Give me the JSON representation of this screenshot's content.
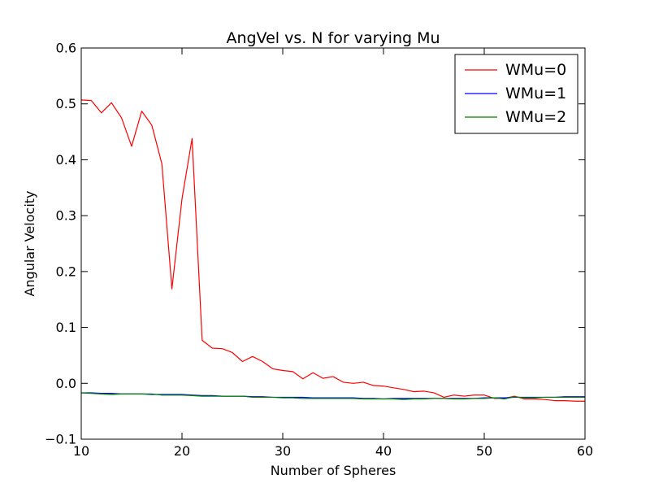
{
  "chart_data": {
    "type": "line",
    "title": "AngVel vs. N for varying Mu",
    "xlabel": "Number of Spheres",
    "ylabel": "Angular Velocity",
    "xlim": [
      10,
      60
    ],
    "ylim": [
      -0.1,
      0.6
    ],
    "xticks": [
      "10",
      "20",
      "30",
      "40",
      "50",
      "60"
    ],
    "yticks": [
      "−0.1",
      "0.0",
      "0.1",
      "0.2",
      "0.3",
      "0.4",
      "0.5",
      "0.6"
    ],
    "grid": false,
    "legend_position": "top-right",
    "x": [
      10,
      11,
      12,
      13,
      14,
      15,
      16,
      17,
      18,
      19,
      20,
      21,
      22,
      23,
      24,
      25,
      26,
      27,
      28,
      29,
      30,
      31,
      32,
      33,
      34,
      35,
      36,
      37,
      38,
      39,
      40,
      41,
      42,
      43,
      44,
      45,
      46,
      47,
      48,
      49,
      50,
      51,
      52,
      53,
      54,
      55,
      56,
      57,
      58,
      59,
      60
    ],
    "series": [
      {
        "name": "WMu=0",
        "color": "#ff0000",
        "values": [
          0.507,
          0.506,
          0.484,
          0.502,
          0.475,
          0.424,
          0.487,
          0.462,
          0.393,
          0.169,
          0.33,
          0.438,
          0.077,
          0.063,
          0.062,
          0.055,
          0.039,
          0.048,
          0.039,
          0.026,
          0.023,
          0.021,
          0.008,
          0.019,
          0.009,
          0.012,
          0.002,
          0.0,
          0.002,
          -0.004,
          -0.005,
          -0.008,
          -0.011,
          -0.015,
          -0.014,
          -0.017,
          -0.025,
          -0.021,
          -0.023,
          -0.021,
          -0.021,
          -0.027,
          -0.027,
          -0.023,
          -0.028,
          -0.028,
          -0.029,
          -0.031,
          -0.031,
          -0.032,
          -0.032
        ]
      },
      {
        "name": "WMu=1",
        "color": "#0000ff",
        "values": [
          -0.017,
          -0.017,
          -0.018,
          -0.018,
          -0.019,
          -0.019,
          -0.019,
          -0.02,
          -0.02,
          -0.02,
          -0.02,
          -0.021,
          -0.022,
          -0.022,
          -0.023,
          -0.023,
          -0.023,
          -0.024,
          -0.024,
          -0.025,
          -0.025,
          -0.025,
          -0.025,
          -0.026,
          -0.026,
          -0.026,
          -0.026,
          -0.026,
          -0.027,
          -0.027,
          -0.028,
          -0.027,
          -0.027,
          -0.027,
          -0.027,
          -0.027,
          -0.027,
          -0.027,
          -0.027,
          -0.027,
          -0.026,
          -0.026,
          -0.026,
          -0.025,
          -0.025,
          -0.025,
          -0.025,
          -0.025,
          -0.024,
          -0.024,
          -0.024
        ]
      },
      {
        "name": "WMu=2",
        "color": "#008000",
        "values": [
          -0.017,
          -0.018,
          -0.019,
          -0.02,
          -0.019,
          -0.019,
          -0.019,
          -0.019,
          -0.021,
          -0.021,
          -0.021,
          -0.022,
          -0.023,
          -0.023,
          -0.023,
          -0.023,
          -0.023,
          -0.025,
          -0.025,
          -0.025,
          -0.026,
          -0.026,
          -0.027,
          -0.027,
          -0.027,
          -0.027,
          -0.027,
          -0.027,
          -0.028,
          -0.028,
          -0.028,
          -0.028,
          -0.029,
          -0.028,
          -0.028,
          -0.027,
          -0.027,
          -0.028,
          -0.028,
          -0.027,
          -0.027,
          -0.026,
          -0.028,
          -0.024,
          -0.026,
          -0.026,
          -0.025,
          -0.025,
          -0.025,
          -0.025,
          -0.025
        ]
      }
    ]
  }
}
